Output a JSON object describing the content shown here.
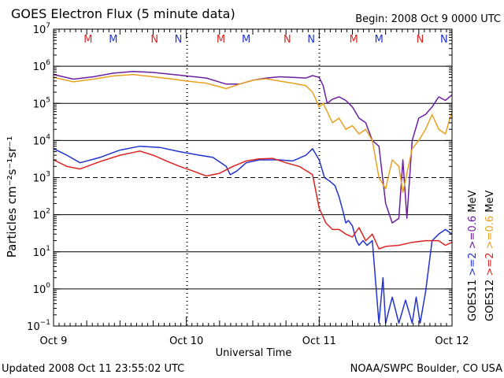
{
  "chart_data": {
    "type": "line",
    "title": "GOES Electron Flux (5 minute data)",
    "begin_label": "Begin: 2008 Oct 9 0000 UTC",
    "xlabel": "Universal Time",
    "ylabel": "Particles cm⁻²s⁻¹sr⁻¹",
    "footer_left": "Updated 2008 Oct 11 23:55:02 UTC",
    "footer_right": "NOAA/SWPC Boulder, CO USA",
    "x_unit": "days since 2008 Oct 9 0000 UTC",
    "xlim": [
      0,
      3
    ],
    "x_ticks": [
      {
        "value": 0,
        "label": "Oct 9"
      },
      {
        "value": 1,
        "label": "Oct 10"
      },
      {
        "value": 2,
        "label": "Oct 11"
      },
      {
        "value": 3,
        "label": "Oct 12"
      }
    ],
    "yscale": "log",
    "ylim_exponent": [
      -1,
      7
    ],
    "y_ticks": [
      {
        "exp": -1,
        "base": "10",
        "sup": "−1"
      },
      {
        "exp": 0,
        "base": "10",
        "sup": "0"
      },
      {
        "exp": 1,
        "base": "10",
        "sup": "1"
      },
      {
        "exp": 2,
        "base": "10",
        "sup": "2"
      },
      {
        "exp": 3,
        "base": "10",
        "sup": "3"
      },
      {
        "exp": 4,
        "base": "10",
        "sup": "4"
      },
      {
        "exp": 5,
        "base": "10",
        "sup": "5"
      },
      {
        "exp": 6,
        "base": "10",
        "sup": "6"
      },
      {
        "exp": 7,
        "base": "10",
        "sup": "7"
      }
    ],
    "grid_solid_exponents": [
      0,
      1,
      2,
      4,
      5,
      6
    ],
    "threshold_exponent": 3,
    "markers": [
      {
        "label": "M",
        "x": 0.26,
        "color": "#dd2222"
      },
      {
        "label": "M",
        "x": 0.45,
        "color": "#2233cc"
      },
      {
        "label": "N",
        "x": 0.76,
        "color": "#dd2222"
      },
      {
        "label": "N",
        "x": 0.94,
        "color": "#2233cc"
      },
      {
        "label": "M",
        "x": 1.26,
        "color": "#dd2222"
      },
      {
        "label": "M",
        "x": 1.45,
        "color": "#2233cc"
      },
      {
        "label": "N",
        "x": 1.76,
        "color": "#dd2222"
      },
      {
        "label": "N",
        "x": 1.94,
        "color": "#2233cc"
      },
      {
        "label": "M",
        "x": 2.26,
        "color": "#dd2222"
      },
      {
        "label": "M",
        "x": 2.45,
        "color": "#2233cc"
      },
      {
        "label": "N",
        "x": 2.76,
        "color": "#dd2222"
      },
      {
        "label": "N",
        "x": 2.94,
        "color": "#2233cc"
      }
    ],
    "legend": [
      {
        "label": "GOES11",
        "color": "#000000"
      },
      {
        "label": ">=2",
        "color": "#2233cc"
      },
      {
        "label": ">=0.6",
        "color": "#6a1fa0"
      },
      {
        "label": "MeV",
        "color": "#000000"
      },
      {
        "label": "GOES12",
        "color": "#000000"
      },
      {
        "label": ">=2",
        "color": "#dd2222"
      },
      {
        "label": ">=0.6",
        "color": "#e8a020"
      },
      {
        "label": "MeV",
        "color": "#000000"
      }
    ],
    "series": [
      {
        "name": "GOES11 >=0.6 MeV",
        "color": "#6a1fa0",
        "x": [
          0,
          0.15,
          0.3,
          0.45,
          0.6,
          0.75,
          0.9,
          1.0,
          1.15,
          1.3,
          1.4,
          1.5,
          1.6,
          1.7,
          1.8,
          1.9,
          1.95,
          2.0,
          2.03,
          2.06,
          2.1,
          2.15,
          2.2,
          2.25,
          2.3,
          2.35,
          2.4,
          2.45,
          2.5,
          2.55,
          2.6,
          2.63,
          2.66,
          2.7,
          2.75,
          2.8,
          2.85,
          2.9,
          2.95,
          3.0
        ],
        "y": [
          600000,
          450000,
          520000,
          650000,
          720000,
          680000,
          600000,
          550000,
          480000,
          330000,
          330000,
          420000,
          480000,
          520000,
          500000,
          480000,
          560000,
          500000,
          300000,
          100000,
          130000,
          150000,
          120000,
          80000,
          40000,
          30000,
          10000,
          7000,
          200,
          60,
          80,
          3000,
          80,
          10000,
          40000,
          50000,
          80000,
          150000,
          120000,
          170000
        ]
      },
      {
        "name": "GOES12 >=0.6 MeV",
        "color": "#e8a020",
        "x": [
          0,
          0.15,
          0.3,
          0.45,
          0.6,
          0.75,
          0.9,
          1.0,
          1.15,
          1.3,
          1.4,
          1.5,
          1.6,
          1.7,
          1.8,
          1.9,
          1.95,
          2.0,
          2.03,
          2.06,
          2.1,
          2.15,
          2.2,
          2.25,
          2.3,
          2.35,
          2.4,
          2.45,
          2.5,
          2.55,
          2.6,
          2.63,
          2.7,
          2.75,
          2.8,
          2.85,
          2.9,
          2.95,
          3.0
        ],
        "y": [
          500000,
          380000,
          450000,
          550000,
          600000,
          520000,
          450000,
          400000,
          350000,
          250000,
          330000,
          420000,
          460000,
          400000,
          350000,
          300000,
          200000,
          80000,
          100000,
          60000,
          30000,
          40000,
          20000,
          25000,
          15000,
          20000,
          10000,
          1000,
          500,
          3000,
          2000,
          400,
          6000,
          10000,
          20000,
          50000,
          20000,
          15000,
          60000
        ]
      },
      {
        "name": "GOES11 >=2 MeV",
        "color": "#2233cc",
        "x": [
          0,
          0.1,
          0.2,
          0.35,
          0.5,
          0.65,
          0.8,
          0.95,
          1.1,
          1.2,
          1.3,
          1.33,
          1.38,
          1.45,
          1.55,
          1.7,
          1.8,
          1.9,
          1.95,
          2.0,
          2.04,
          2.08,
          2.12,
          2.15,
          2.18,
          2.2,
          2.22,
          2.25,
          2.28,
          2.3,
          2.33,
          2.36,
          2.4,
          2.45,
          2.48,
          2.5,
          2.55,
          2.6,
          2.65,
          2.7,
          2.73,
          2.76,
          2.8,
          2.85,
          2.9,
          2.95,
          3.0
        ],
        "y": [
          6000,
          4000,
          2500,
          3500,
          5500,
          7000,
          6500,
          5000,
          4000,
          3500,
          2000,
          1200,
          1500,
          2500,
          3000,
          3000,
          2800,
          4000,
          6000,
          3000,
          1000,
          800,
          600,
          300,
          120,
          60,
          70,
          50,
          20,
          15,
          20,
          15,
          20,
          0.12,
          2,
          0.12,
          0.6,
          0.12,
          0.5,
          0.12,
          0.6,
          0.12,
          0.8,
          20,
          30,
          40,
          30
        ]
      },
      {
        "name": "GOES12 >=2 MeV",
        "color": "#dd2222",
        "x": [
          0,
          0.1,
          0.2,
          0.35,
          0.5,
          0.65,
          0.75,
          0.85,
          0.95,
          1.05,
          1.15,
          1.25,
          1.35,
          1.45,
          1.55,
          1.65,
          1.75,
          1.85,
          1.95,
          2.0,
          2.05,
          2.1,
          2.15,
          2.2,
          2.25,
          2.3,
          2.35,
          2.4,
          2.45,
          2.5,
          2.6,
          2.7,
          2.8,
          2.9,
          2.95,
          3.0
        ],
        "y": [
          3000,
          2000,
          1700,
          2700,
          4000,
          5200,
          4000,
          2800,
          2000,
          1500,
          1100,
          1300,
          2000,
          2800,
          3200,
          3300,
          2500,
          2000,
          1200,
          150,
          60,
          40,
          40,
          30,
          25,
          45,
          20,
          30,
          12,
          14,
          15,
          18,
          20,
          20,
          15,
          18
        ]
      }
    ]
  }
}
